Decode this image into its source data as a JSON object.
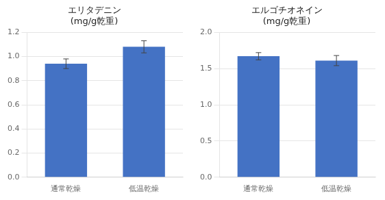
{
  "chart_data": [
    {
      "type": "bar",
      "title": "エリタデニン\n(mg/g乾重)",
      "categories": [
        "通常乾燥",
        "低温乾燥"
      ],
      "values": [
        0.94,
        1.08
      ],
      "errors": [
        0.04,
        0.05
      ],
      "color": "#4472C4",
      "ylim": [
        0,
        1.2
      ],
      "yticks": [
        {
          "value": 0,
          "label": "0.0"
        },
        0.2,
        0.4,
        0.6,
        0.8,
        {
          "value": 1.0,
          "label": "1.0"
        },
        1.2
      ],
      "grid": true
    },
    {
      "type": "bar",
      "title": "エルゴチオネイン\n(mg/g乾重)",
      "categories": [
        "通常乾燥",
        "低温乾燥"
      ],
      "values": [
        1.67,
        1.61
      ],
      "errors": [
        0.05,
        0.07
      ],
      "color": "#4472C4",
      "ylim": [
        0,
        2
      ],
      "yticks": [
        {
          "value": 0,
          "label": "0.0"
        },
        0.5,
        {
          "value": 1.0,
          "label": "1.0"
        },
        1.5,
        {
          "value": 2.0,
          "label": "2.0"
        }
      ],
      "grid": true
    }
  ]
}
